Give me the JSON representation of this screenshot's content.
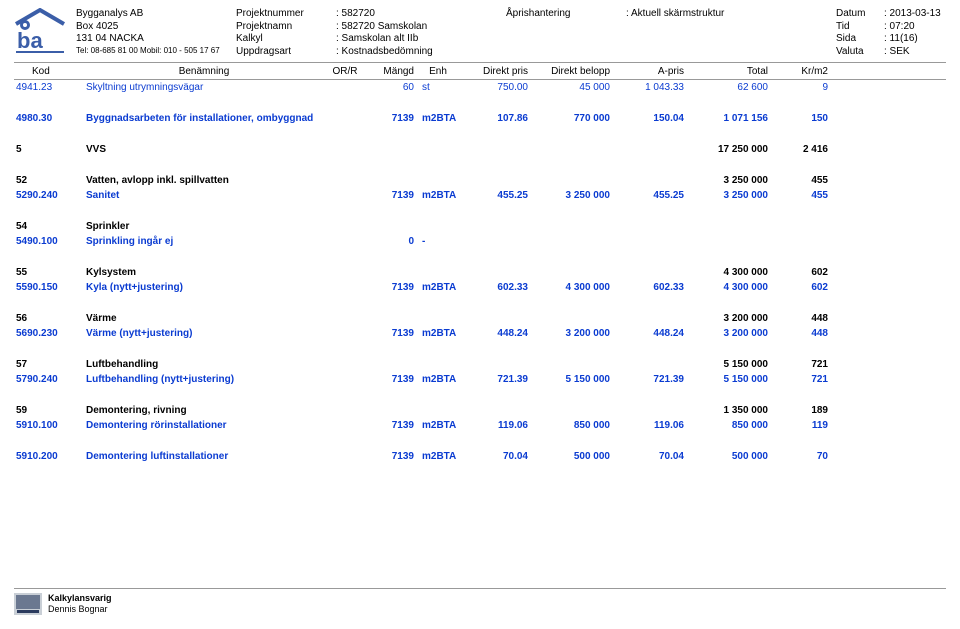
{
  "header": {
    "company_name": "Bygganalys AB",
    "company_box": "Box 4025",
    "company_city": "131 04  NACKA",
    "company_tel": "Tel: 08-685 81 00  Mobil: 010 - 505 17 67",
    "meta1_labels": [
      "Projektnummer",
      "Projektnamn",
      "Kalkyl",
      "Uppdragsart"
    ],
    "meta2_values": [
      ": 582720",
      ": 582720 Samskolan",
      ": Samskolan alt IIb",
      ": Kostnadsbedömning"
    ],
    "meta3_label": "Åprishantering",
    "meta3_value": ": Aktuell skärmstruktur",
    "meta4_labels": [
      "Datum",
      "Tid",
      "Sida",
      "Valuta"
    ],
    "meta4_values": [
      ": 2013-03-13",
      ": 07:20",
      ": 11(16)",
      ": SEK"
    ]
  },
  "columns": {
    "kod": "Kod",
    "ben": "Benämning",
    "orr": "OR/R",
    "mangd": "Mängd",
    "enh": "Enh",
    "dpris": "Direkt pris",
    "dbelopp": "Direkt belopp",
    "apris": "A-pris",
    "total": "Total",
    "krm2": "Kr/m2"
  },
  "rows": [
    {
      "style": "blue",
      "kod": "4941.23",
      "ben": "Skyltning utrymningsvägar",
      "mangd": "60",
      "enh": "st",
      "dpris": "750.00",
      "dbelopp": "45 000",
      "apris": "1 043.33",
      "total": "62 600",
      "krm2": "9"
    },
    {
      "spacer": true
    },
    {
      "style": "blue bbold",
      "kod": "4980.30",
      "ben": "Byggnadsarbeten för installationer, ombyggnad",
      "mangd": "7139",
      "enh": "m2BTA",
      "dpris": "107.86",
      "dbelopp": "770 000",
      "apris": "150.04",
      "total": "1 071 156",
      "krm2": "150"
    },
    {
      "spacer": true
    },
    {
      "style": "bbold",
      "kod": "5",
      "ben": "VVS",
      "total": "17 250 000",
      "krm2": "2 416"
    },
    {
      "spacer": true
    },
    {
      "style": "bbold",
      "kod": "52",
      "ben": "Vatten, avlopp inkl. spillvatten",
      "total": "3 250 000",
      "krm2": "455"
    },
    {
      "style": "blue bbold",
      "kod": "5290.240",
      "ben": "Sanitet",
      "mangd": "7139",
      "enh": "m2BTA",
      "dpris": "455.25",
      "dbelopp": "3 250 000",
      "apris": "455.25",
      "total": "3 250 000",
      "krm2": "455"
    },
    {
      "spacer": true
    },
    {
      "style": "bbold",
      "kod": "54",
      "ben": "Sprinkler"
    },
    {
      "style": "blue bbold",
      "kod": "5490.100",
      "ben": "Sprinkling ingår ej",
      "mangd": "0",
      "enh": "-"
    },
    {
      "spacer": true
    },
    {
      "style": "bbold",
      "kod": "55",
      "ben": "Kylsystem",
      "total": "4 300 000",
      "krm2": "602"
    },
    {
      "style": "blue bbold",
      "kod": "5590.150",
      "ben": "Kyla (nytt+justering)",
      "mangd": "7139",
      "enh": "m2BTA",
      "dpris": "602.33",
      "dbelopp": "4 300 000",
      "apris": "602.33",
      "total": "4 300 000",
      "krm2": "602"
    },
    {
      "spacer": true
    },
    {
      "style": "bbold",
      "kod": "56",
      "ben": "Värme",
      "total": "3 200 000",
      "krm2": "448"
    },
    {
      "style": "blue bbold",
      "kod": "5690.230",
      "ben": "Värme (nytt+justering)",
      "mangd": "7139",
      "enh": "m2BTA",
      "dpris": "448.24",
      "dbelopp": "3 200 000",
      "apris": "448.24",
      "total": "3 200 000",
      "krm2": "448"
    },
    {
      "spacer": true
    },
    {
      "style": "bbold",
      "kod": "57",
      "ben": "Luftbehandling",
      "total": "5 150 000",
      "krm2": "721"
    },
    {
      "style": "blue bbold",
      "kod": "5790.240",
      "ben": "Luftbehandling (nytt+justering)",
      "mangd": "7139",
      "enh": "m2BTA",
      "dpris": "721.39",
      "dbelopp": "5 150 000",
      "apris": "721.39",
      "total": "5 150 000",
      "krm2": "721"
    },
    {
      "spacer": true
    },
    {
      "style": "bbold",
      "kod": "59",
      "ben": "Demontering, rivning",
      "total": "1 350 000",
      "krm2": "189"
    },
    {
      "style": "blue bbold",
      "kod": "5910.100",
      "ben": "Demontering rörinstallationer",
      "mangd": "7139",
      "enh": "m2BTA",
      "dpris": "119.06",
      "dbelopp": "850 000",
      "apris": "119.06",
      "total": "850 000",
      "krm2": "119"
    },
    {
      "spacer": true
    },
    {
      "style": "blue bbold",
      "kod": "5910.200",
      "ben": "Demontering luftinstallationer",
      "mangd": "7139",
      "enh": "m2BTA",
      "dpris": "70.04",
      "dbelopp": "500 000",
      "apris": "70.04",
      "total": "500 000",
      "krm2": "70"
    }
  ],
  "footer": {
    "role": "Kalkylansvarig",
    "name": "Dennis Bognar"
  },
  "colors": {
    "blue": "#0a3bd1",
    "border": "#999999",
    "logo_roof": "#3b5ea8",
    "logo_text": "#3b5ea8"
  }
}
